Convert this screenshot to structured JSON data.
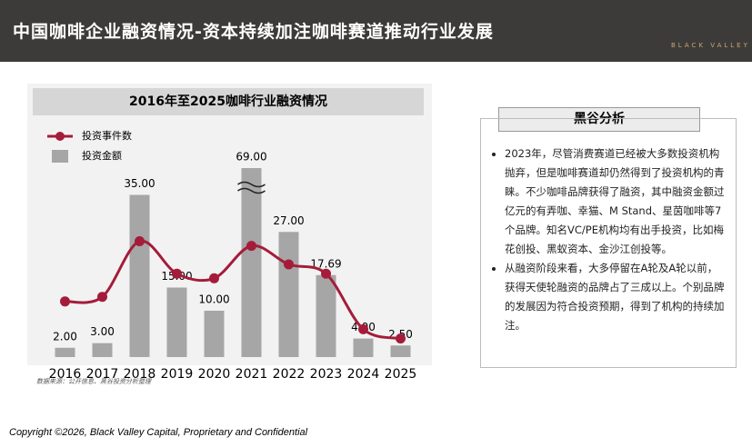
{
  "header": {
    "title": "中国咖啡企业融资情况-资本持续加注咖啡赛道推动行业发展",
    "logo": "BLACK VALLEY"
  },
  "chart_data": {
    "type": "bar",
    "title": "2016年至2025咖啡行业融资情况",
    "categories": [
      "2016",
      "2017",
      "2018",
      "2019",
      "2020",
      "2021",
      "2022",
      "2023",
      "2024",
      "2025"
    ],
    "series": [
      {
        "name": "投资事件数",
        "type": "line",
        "color": "#a51c3a",
        "values": [
          12,
          13,
          25,
          18,
          17,
          24,
          20,
          18,
          6,
          4
        ]
      },
      {
        "name": "投资金额",
        "type": "bar",
        "color": "#a6a6a6",
        "values": [
          2,
          3,
          35,
          15,
          10,
          69,
          27,
          17.69,
          4,
          2.5
        ],
        "value_labels": [
          "2.00",
          "3.00",
          "35.00",
          "15.00",
          "10.00",
          "69.00",
          "27.00",
          "17.69",
          "4.00",
          "2.50"
        ]
      }
    ],
    "ylim": [
      0,
      40
    ],
    "axis_break": true,
    "source": "数据来源：公开信息、黑谷投资分析整理"
  },
  "analysis": {
    "title": "黑谷分析",
    "bullets": [
      "2023年，尽管消费赛道已经被大多数投资机构抛弃，但是咖啡赛道却仍然得到了投资机构的青睐。不少咖啡品牌获得了融资，其中融资金额过亿元的有弄咖、幸猫、M Stand、星茵咖啡等7个品牌。知名VC/PE机构均有出手投资，比如梅花创投、黑蚁资本、金沙江创投等。",
      "从融资阶段来看，大多停留在A轮及A轮以前，获得天使轮融资的品牌占了三成以上。个别品牌的发展因为符合投资预期，得到了机构的持续加注。"
    ]
  },
  "footer": "Copyright ©2026, Black Valley Capital, Proprietary and Confidential"
}
